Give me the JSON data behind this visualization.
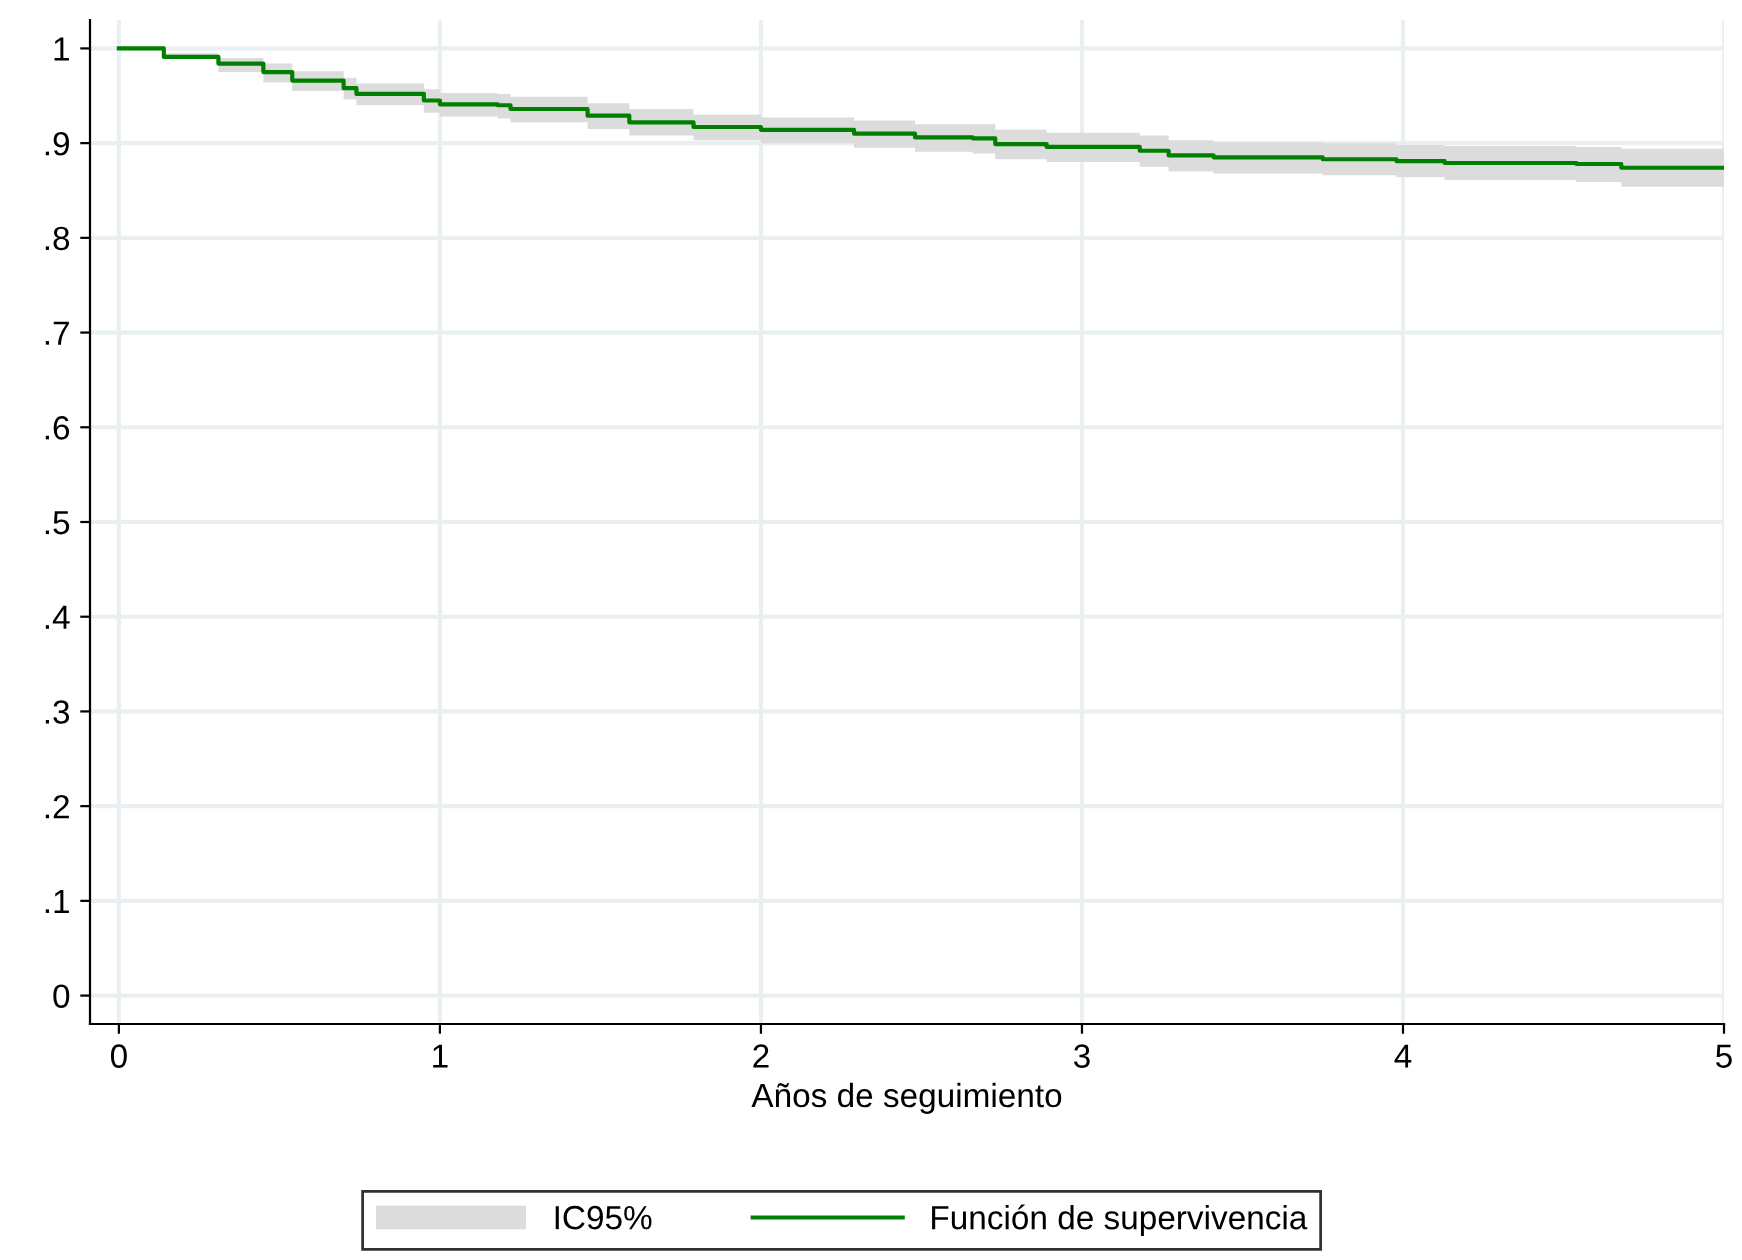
{
  "chart_data": {
    "type": "step",
    "xlabel": "Años de seguimiento",
    "xlim": [
      -0.09,
      5
    ],
    "ylim": [
      -0.03,
      1.03
    ],
    "xticks": [
      0,
      1,
      2,
      3,
      4,
      5
    ],
    "yticks": [
      0,
      {
        "value": 0.1,
        "label": ".1"
      },
      {
        "value": 0.2,
        "label": ".2"
      },
      {
        "value": 0.3,
        "label": ".3"
      },
      {
        "value": 0.4,
        "label": ".4"
      },
      {
        "value": 0.5,
        "label": ".5"
      },
      {
        "value": 0.6,
        "label": ".6"
      },
      {
        "value": 0.7,
        "label": ".7"
      },
      {
        "value": 0.8,
        "label": ".8"
      },
      {
        "value": 0.9,
        "label": ".9"
      },
      1
    ],
    "grid": true,
    "legend": "bottom",
    "annotations": [
      "IC95%"
    ],
    "series": [
      {
        "name": "Función de supervivencia",
        "color": "#008000",
        "x": [
          0,
          0.14,
          0.31,
          0.45,
          0.54,
          0.7,
          0.74,
          0.95,
          1.0,
          1.18,
          1.22,
          1.46,
          1.59,
          1.79,
          2.0,
          2.29,
          2.48,
          2.66,
          2.73,
          2.89,
          3.18,
          3.27,
          3.41,
          3.75,
          3.98,
          4.13,
          4.54,
          4.68,
          5.0
        ],
        "values": [
          1,
          0.991,
          0.984,
          0.975,
          0.966,
          0.958,
          0.952,
          0.945,
          0.941,
          0.94,
          0.936,
          0.929,
          0.922,
          0.917,
          0.914,
          0.91,
          0.906,
          0.905,
          0.899,
          0.896,
          0.892,
          0.887,
          0.885,
          0.883,
          0.881,
          0.879,
          0.878,
          0.874,
          0.874
        ],
        "lower": [
          1,
          0.991,
          0.975,
          0.964,
          0.955,
          0.946,
          0.94,
          0.932,
          0.928,
          0.926,
          0.922,
          0.915,
          0.908,
          0.903,
          0.9,
          0.895,
          0.891,
          0.889,
          0.883,
          0.88,
          0.875,
          0.87,
          0.868,
          0.866,
          0.864,
          0.861,
          0.859,
          0.854,
          0.853
        ],
        "upper": [
          1,
          0.995,
          0.99,
          0.984,
          0.976,
          0.969,
          0.963,
          0.957,
          0.953,
          0.952,
          0.949,
          0.942,
          0.936,
          0.93,
          0.927,
          0.924,
          0.92,
          0.92,
          0.914,
          0.911,
          0.908,
          0.903,
          0.901,
          0.9,
          0.898,
          0.897,
          0.896,
          0.894,
          0.894
        ]
      }
    ]
  }
}
